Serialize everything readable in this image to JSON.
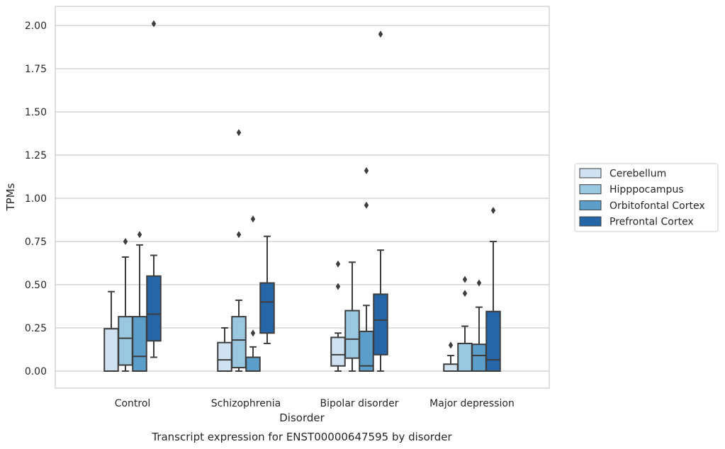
{
  "caption": "Transcript expression for ENST00000647595 by disorder",
  "chart_data": {
    "type": "box",
    "title": "",
    "xlabel": "Disorder",
    "ylabel": "TPMs",
    "ylim": [
      -0.1,
      2.12
    ],
    "yticks": [
      "0.00",
      "0.25",
      "0.50",
      "0.75",
      "1.00",
      "1.25",
      "1.50",
      "1.75",
      "2.00"
    ],
    "grid": "horizontal",
    "legend_position": "right",
    "categories": [
      "Control",
      "Schizophrenia",
      "Bipolar disorder",
      "Major depression"
    ],
    "series": [
      {
        "name": "Cerebellum",
        "color": "#d0e1f2",
        "boxes": [
          {
            "low": 0.0,
            "q1": 0.0,
            "median": 0.0,
            "q3": 0.245,
            "high": 0.46,
            "outliers": []
          },
          {
            "low": 0.0,
            "q1": 0.0,
            "median": 0.065,
            "q3": 0.165,
            "high": 0.25,
            "outliers": []
          },
          {
            "low": 0.0,
            "q1": 0.03,
            "median": 0.095,
            "q3": 0.195,
            "high": 0.22,
            "outliers": [
              0.49,
              0.62
            ]
          },
          {
            "low": 0.0,
            "q1": 0.0,
            "median": 0.0,
            "q3": 0.04,
            "high": 0.09,
            "outliers": [
              0.15
            ]
          }
        ]
      },
      {
        "name": "Hipppocampus",
        "color": "#9ac8e0",
        "boxes": [
          {
            "low": 0.0,
            "q1": 0.035,
            "median": 0.19,
            "q3": 0.315,
            "high": 0.66,
            "outliers": [
              0.75
            ]
          },
          {
            "low": 0.0,
            "q1": 0.02,
            "median": 0.18,
            "q3": 0.315,
            "high": 0.41,
            "outliers": [
              0.79,
              1.38
            ]
          },
          {
            "low": 0.0,
            "q1": 0.075,
            "median": 0.185,
            "q3": 0.35,
            "high": 0.63,
            "outliers": []
          },
          {
            "low": 0.0,
            "q1": 0.0,
            "median": 0.0,
            "q3": 0.16,
            "high": 0.26,
            "outliers": [
              0.45,
              0.53
            ]
          }
        ]
      },
      {
        "name": "Orbitofontal Cortex",
        "color": "#5b9ec9",
        "boxes": [
          {
            "low": 0.0,
            "q1": 0.0,
            "median": 0.085,
            "q3": 0.315,
            "high": 0.73,
            "outliers": [
              0.79
            ]
          },
          {
            "low": 0.0,
            "q1": 0.0,
            "median": 0.0,
            "q3": 0.08,
            "high": 0.14,
            "outliers": [
              0.22,
              0.88
            ]
          },
          {
            "low": 0.0,
            "q1": 0.0,
            "median": 0.03,
            "q3": 0.23,
            "high": 0.38,
            "outliers": [
              0.96,
              1.16
            ]
          },
          {
            "low": 0.0,
            "q1": 0.0,
            "median": 0.09,
            "q3": 0.155,
            "high": 0.37,
            "outliers": [
              0.51
            ]
          }
        ]
      },
      {
        "name": "Prefrontal Cortex",
        "color": "#2466a8",
        "boxes": [
          {
            "low": 0.08,
            "q1": 0.175,
            "median": 0.33,
            "q3": 0.55,
            "high": 0.67,
            "outliers": [
              2.01
            ]
          },
          {
            "low": 0.16,
            "q1": 0.22,
            "median": 0.4,
            "q3": 0.51,
            "high": 0.78,
            "outliers": []
          },
          {
            "low": 0.0,
            "q1": 0.095,
            "median": 0.295,
            "q3": 0.445,
            "high": 0.7,
            "outliers": [
              1.95
            ]
          },
          {
            "low": 0.0,
            "q1": 0.0,
            "median": 0.065,
            "q3": 0.345,
            "high": 0.75,
            "outliers": [
              0.93
            ]
          }
        ]
      }
    ]
  }
}
